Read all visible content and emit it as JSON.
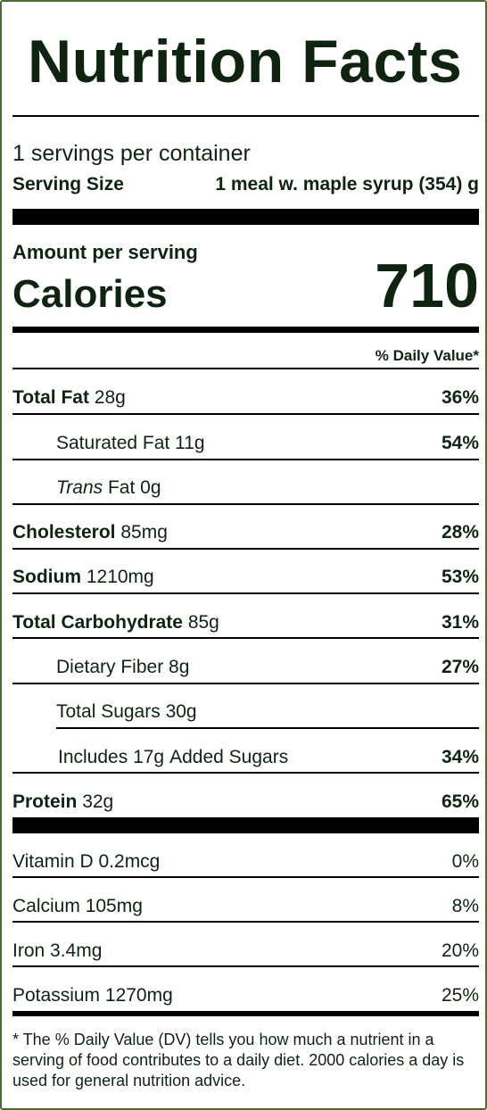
{
  "title": "Nutrition Facts",
  "servings_per_container": "1 servings per container",
  "serving_size": {
    "label": "Serving Size",
    "value": "1 meal w. maple syrup (354) g"
  },
  "amount_per_serving": "Amount per serving",
  "calories": {
    "label": "Calories",
    "value": "710"
  },
  "daily_value_header": "% Daily Value*",
  "nutrients": {
    "total_fat": {
      "name": "Total Fat",
      "amount": "28g",
      "dv": "36%"
    },
    "saturated_fat": {
      "name": "Saturated Fat",
      "amount": "11g",
      "dv": "54%"
    },
    "trans_fat": {
      "name_italic": "Trans",
      "name_rest": "Fat",
      "amount": "0g"
    },
    "cholesterol": {
      "name": "Cholesterol",
      "amount": "85mg",
      "dv": "28%"
    },
    "sodium": {
      "name": "Sodium",
      "amount": "1210mg",
      "dv": "53%"
    },
    "total_carbohydrate": {
      "name": "Total Carbohydrate",
      "amount": "85g",
      "dv": "31%"
    },
    "dietary_fiber": {
      "name": "Dietary Fiber",
      "amount": "8g",
      "dv": "27%"
    },
    "total_sugars": {
      "name": "Total Sugars",
      "amount": "30g"
    },
    "added_sugars": {
      "prefix": "Includes",
      "amount": "17g",
      "suffix": "Added Sugars",
      "dv": "34%"
    },
    "protein": {
      "name": "Protein",
      "amount": "32g",
      "dv": "65%"
    }
  },
  "vitamins": {
    "vitamin_d": {
      "name": "Vitamin D",
      "amount": "0.2mcg",
      "dv": "0%"
    },
    "calcium": {
      "name": "Calcium",
      "amount": "105mg",
      "dv": "8%"
    },
    "iron": {
      "name": "Iron",
      "amount": "3.4mg",
      "dv": "20%"
    },
    "potassium": {
      "name": "Potassium",
      "amount": "1270mg",
      "dv": "25%"
    }
  },
  "footnote": "* The % Daily Value (DV) tells you how much a nutrient in a serving of food contributes to a daily diet. 2000 calories a day is used for general nutrition advice.",
  "colors": {
    "border": "#4a6b2c",
    "text": "#0f2410",
    "rule": "#000000"
  }
}
